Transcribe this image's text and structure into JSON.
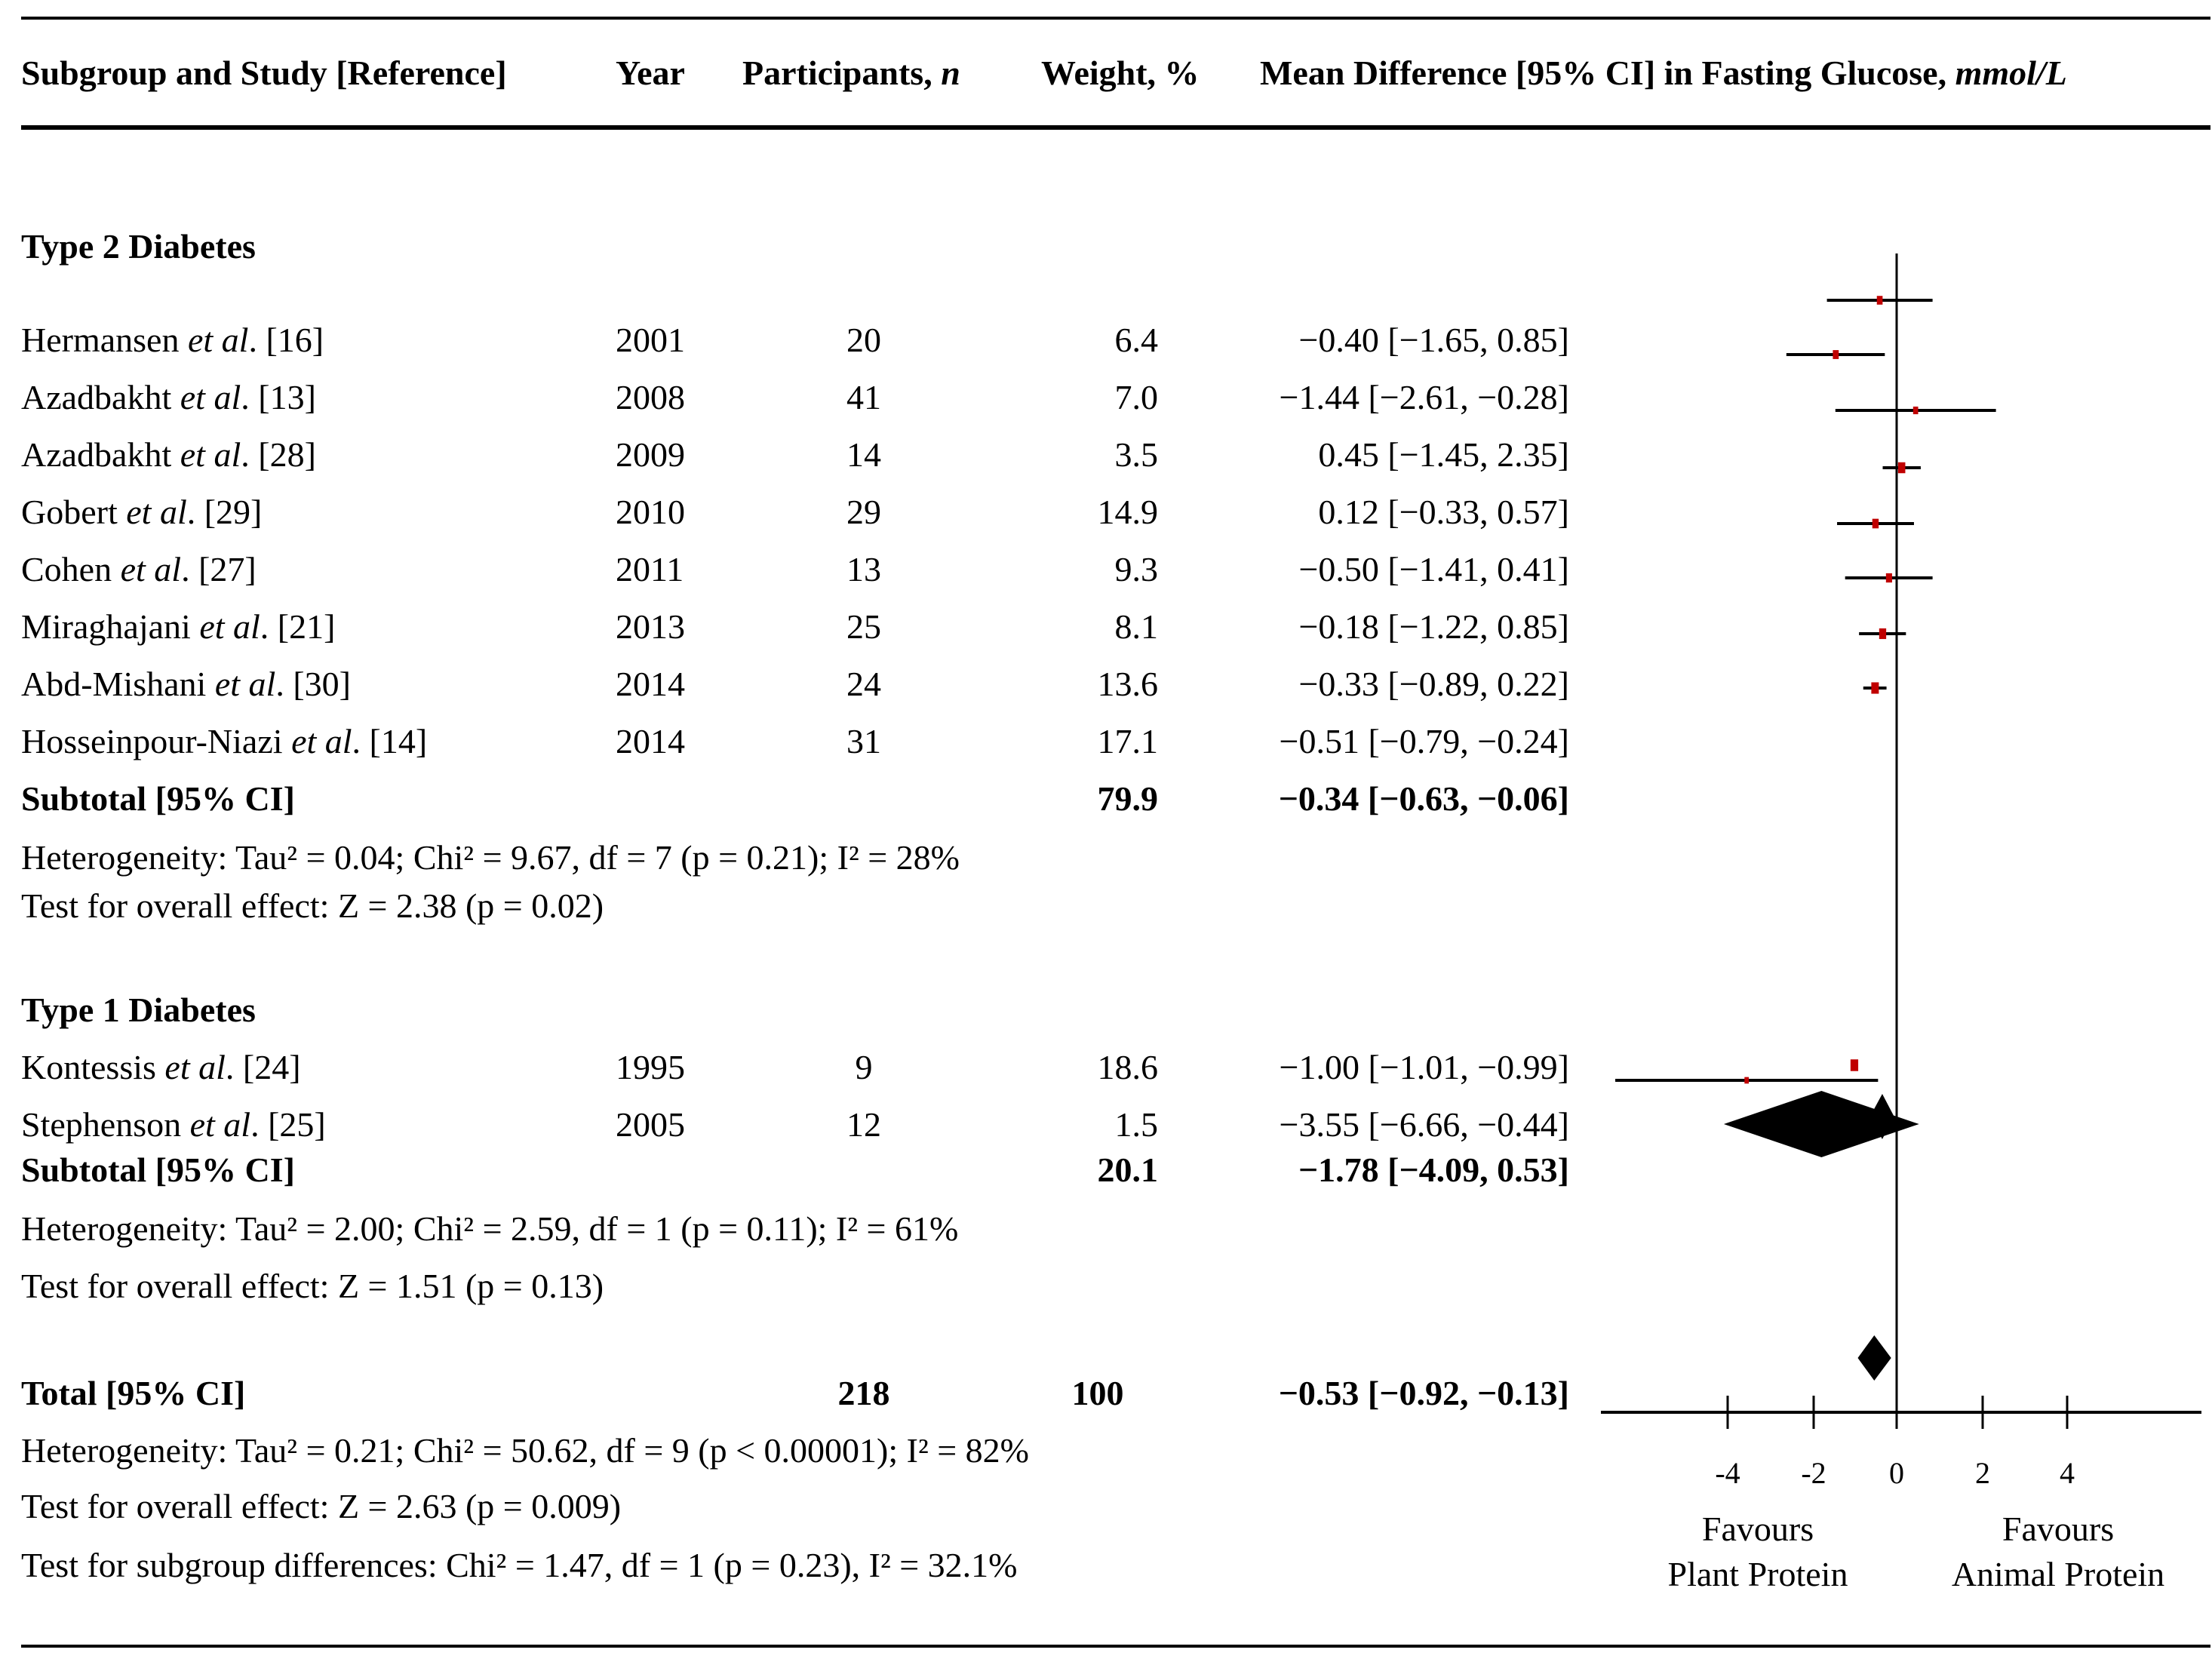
{
  "header": {
    "study": "Subgroup and Study  [Reference]",
    "year": "Year",
    "participants": "Participants, ",
    "participants_n": "n",
    "weight": "Weight, %",
    "md": "Mean Difference  [95% CI] in Fasting Glucose, ",
    "md_unit": "mmol/L"
  },
  "groups": [
    {
      "title": "Type 2 Diabetes",
      "studies": [
        {
          "author": "Hermansen ",
          "etal": "et al",
          "ref": ". [16]",
          "year": "2001",
          "n": "20",
          "weight": "6.4",
          "md": "−0.40 [−1.65, 0.85]"
        },
        {
          "author": "Azadbakht ",
          "etal": "et al",
          "ref": ". [13]",
          "year": "2008",
          "n": "41",
          "weight": "7.0",
          "md": "−1.44 [−2.61, −0.28]"
        },
        {
          "author": "Azadbakht ",
          "etal": "et al",
          "ref": ". [28]",
          "year": "2009",
          "n": "14",
          "weight": "3.5",
          "md": "0.45 [−1.45, 2.35]"
        },
        {
          "author": "Gobert ",
          "etal": "et al",
          "ref": ". [29]",
          "year": "2010",
          "n": "29",
          "weight": "14.9",
          "md": "0.12 [−0.33, 0.57]"
        },
        {
          "author": "Cohen ",
          "etal": "et al",
          "ref": ". [27]",
          "year": "2011",
          "n": "13",
          "weight": "9.3",
          "md": "−0.50 [−1.41, 0.41]"
        },
        {
          "author": "Miraghajani ",
          "etal": "et al",
          "ref": ". [21]",
          "year": "2013",
          "n": "25",
          "weight": "8.1",
          "md": "−0.18 [−1.22, 0.85]"
        },
        {
          "author": "Abd-Mishani ",
          "etal": "et al",
          "ref": ". [30]",
          "year": "2014",
          "n": "24",
          "weight": "13.6",
          "md": "−0.33 [−0.89, 0.22]"
        },
        {
          "author": "Hosseinpour-Niazi ",
          "etal": "et al",
          "ref": ". [14]",
          "year": "2014",
          "n": "31",
          "weight": "17.1",
          "md": "−0.51 [−0.79, −0.24]"
        }
      ],
      "subtotal": {
        "label": "Subtotal [95% CI]",
        "weight": "79.9",
        "md": "−0.34 [−0.63, −0.06]"
      },
      "heterogeneity": "Heterogeneity:  Tau² = 0.04; Chi² = 9.67, df = 7 (p = 0.21); I² = 28%",
      "overall": "Test for overall effect: Z = 2.38 (p = 0.02)"
    },
    {
      "title": "Type 1 Diabetes",
      "studies": [
        {
          "author": "Kontessis ",
          "etal": "et al",
          "ref": ". [24]",
          "year": "1995",
          "n": "9",
          "weight": "18.6",
          "md": "−1.00 [−1.01, −0.99]"
        },
        {
          "author": "Stephenson ",
          "etal": "et al",
          "ref": ". [25]",
          "year": "2005",
          "n": "12",
          "weight": "1.5",
          "md": "−3.55 [−6.66, −0.44]"
        }
      ],
      "subtotal": {
        "label": "Subtotal [95% CI]",
        "weight": "20.1",
        "md": "−1.78 [−4.09, 0.53]"
      },
      "heterogeneity": "Heterogeneity: Tau² = 2.00; Chi² = 2.59, df = 1 (p = 0.11); I² = 61%",
      "overall": "Test for overall effect: Z = 1.51 (p = 0.13)"
    }
  ],
  "total": {
    "label": "Total [95% CI]",
    "n": "218",
    "weight": "100",
    "md": "−0.53 [−0.92, −0.13]"
  },
  "footer": {
    "heterogeneity": "Heterogeneity: Tau² = 0.21; Chi² = 50.62, df = 9 (p < 0.00001); I² = 82%",
    "overall": "Test for overall effect: Z = 2.63 (p = 0.009)",
    "subgroup": "Test for subgroup differences: Chi² = 1.47, df = 1 (p = 0.23), I² = 32.1%"
  },
  "chart_data": {
    "type": "forest",
    "xlim": [
      -7,
      7
    ],
    "x_ticks": [
      -4,
      -2,
      0,
      2,
      4
    ],
    "x_tick_labels": [
      "-4",
      "-2",
      "0",
      "2",
      "4"
    ],
    "favours_left": [
      "Favours",
      "Plant Protein"
    ],
    "favours_right": [
      "Favours",
      "Animal Protein"
    ],
    "marker_color": "#c00000",
    "studies": [
      {
        "label": "Hermansen et al. [16]",
        "md": -0.4,
        "lo": -1.65,
        "hi": 0.85,
        "weight": 6.4
      },
      {
        "label": "Azadbakht et al. [13]",
        "md": -1.44,
        "lo": -2.61,
        "hi": -0.28,
        "weight": 7.0
      },
      {
        "label": "Azadbakht et al. [28]",
        "md": 0.45,
        "lo": -1.45,
        "hi": 2.35,
        "weight": 3.5
      },
      {
        "label": "Gobert et al. [29]",
        "md": 0.12,
        "lo": -0.33,
        "hi": 0.57,
        "weight": 14.9
      },
      {
        "label": "Cohen et al. [27]",
        "md": -0.5,
        "lo": -1.41,
        "hi": 0.41,
        "weight": 9.3
      },
      {
        "label": "Miraghajani et al. [21]",
        "md": -0.18,
        "lo": -1.22,
        "hi": 0.85,
        "weight": 8.1
      },
      {
        "label": "Abd-Mishani et al. [30]",
        "md": -0.33,
        "lo": -0.89,
        "hi": 0.22,
        "weight": 13.6
      },
      {
        "label": "Hosseinpour-Niazi et al. [14]",
        "md": -0.51,
        "lo": -0.79,
        "hi": -0.24,
        "weight": 17.1
      },
      {
        "label": "Kontessis et al. [24]",
        "md": -1.0,
        "lo": -1.01,
        "hi": -0.99,
        "weight": 18.6
      },
      {
        "label": "Stephenson et al. [25]",
        "md": -3.55,
        "lo": -6.66,
        "hi": -0.44,
        "weight": 1.5
      }
    ],
    "summaries": [
      {
        "label": "Subtotal Type 2 Diabetes",
        "md": -0.34,
        "lo": -0.63,
        "hi": -0.06
      },
      {
        "label": "Subtotal Type 1 Diabetes",
        "md": -1.78,
        "lo": -4.09,
        "hi": 0.53
      },
      {
        "label": "Total",
        "md": -0.53,
        "lo": -0.92,
        "hi": -0.13
      }
    ]
  }
}
